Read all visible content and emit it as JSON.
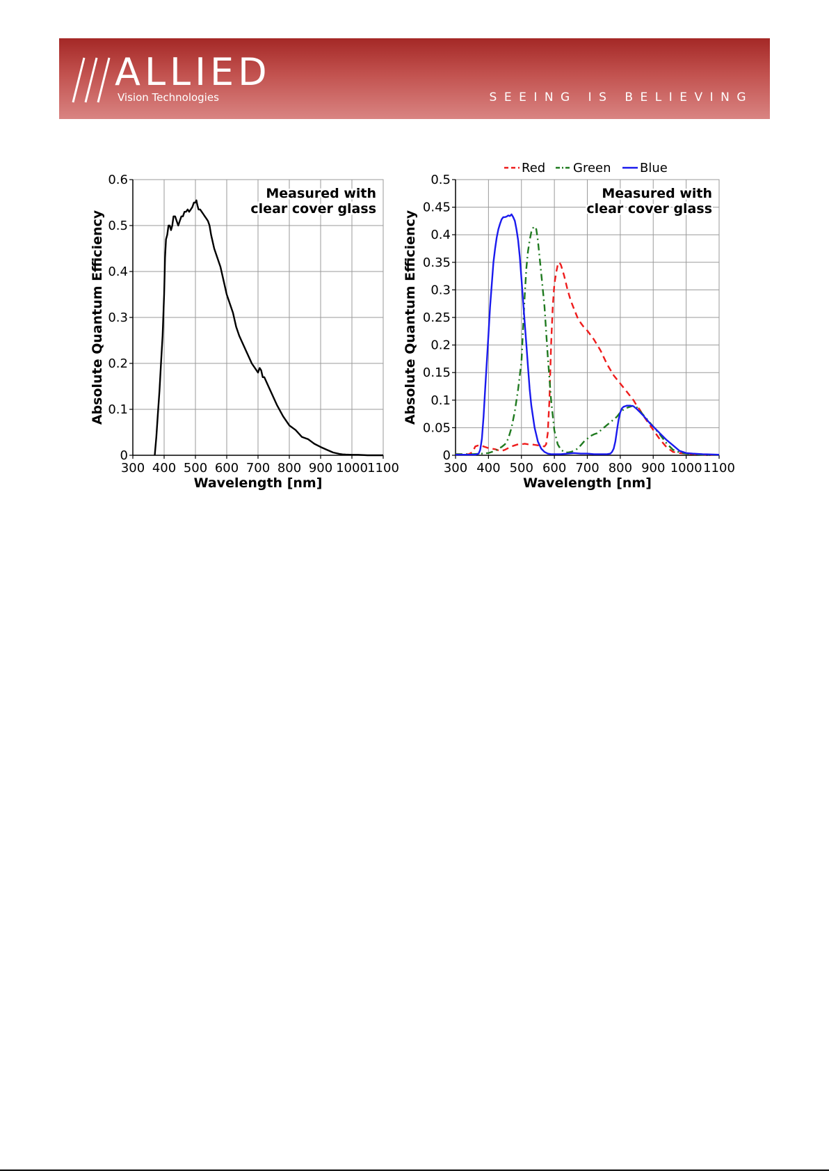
{
  "header": {
    "brand": "ALLIED",
    "subbrand": "Vision Technologies",
    "tagline": "SEEING IS BELIEVING",
    "colors": {
      "banner_top": "#a42826",
      "banner_bottom": "#d98482",
      "text": "#ffffff"
    }
  },
  "chart_data": [
    {
      "type": "line",
      "title": "",
      "ylabel": "Absolute Quantum Efficiency",
      "xlabel": "Wavelength [nm]",
      "annotation": [
        "Measured with",
        "clear cover glass"
      ],
      "xlim": [
        300,
        1100
      ],
      "ylim": [
        0,
        0.6
      ],
      "x_ticks": [
        300,
        400,
        500,
        600,
        700,
        800,
        900,
        1000,
        1100
      ],
      "y_ticks": [
        0,
        0.1,
        0.2,
        0.3,
        0.4,
        0.5,
        0.6
      ],
      "x_tick_labels": [
        "300",
        "400",
        "500",
        "600",
        "700",
        "800",
        "900",
        "1000",
        "1100"
      ],
      "y_tick_labels": [
        "0",
        "0.1",
        "0.2",
        "0.3",
        "0.4",
        "0.5",
        "0.6"
      ],
      "grid": true,
      "legend": null,
      "series": [
        {
          "color": "#000000",
          "dash": "",
          "x": [
            370,
            375,
            380,
            385,
            390,
            395,
            400,
            403,
            406,
            410,
            414,
            418,
            422,
            426,
            430,
            435,
            440,
            445,
            450,
            455,
            460,
            465,
            470,
            475,
            480,
            485,
            490,
            495,
            500,
            503,
            506,
            510,
            515,
            520,
            525,
            530,
            535,
            540,
            545,
            550,
            560,
            570,
            580,
            590,
            600,
            610,
            620,
            630,
            640,
            660,
            680,
            700,
            705,
            710,
            715,
            720,
            730,
            740,
            760,
            780,
            800,
            820,
            840,
            860,
            870,
            880,
            900,
            920,
            940,
            960,
            970,
            980,
            1000,
            1020,
            1050,
            1100
          ],
          "y": [
            0.0,
            0.04,
            0.09,
            0.14,
            0.2,
            0.26,
            0.35,
            0.43,
            0.47,
            0.48,
            0.5,
            0.5,
            0.49,
            0.5,
            0.52,
            0.52,
            0.51,
            0.5,
            0.51,
            0.52,
            0.52,
            0.53,
            0.53,
            0.535,
            0.53,
            0.535,
            0.54,
            0.55,
            0.55,
            0.555,
            0.545,
            0.535,
            0.535,
            0.53,
            0.525,
            0.52,
            0.515,
            0.51,
            0.5,
            0.48,
            0.45,
            0.43,
            0.41,
            0.38,
            0.35,
            0.33,
            0.31,
            0.28,
            0.26,
            0.23,
            0.2,
            0.18,
            0.19,
            0.185,
            0.17,
            0.17,
            0.155,
            0.14,
            0.11,
            0.085,
            0.065,
            0.055,
            0.04,
            0.035,
            0.03,
            0.025,
            0.018,
            0.012,
            0.006,
            0.003,
            0.002,
            0.0015,
            0.001,
            0.001,
            0.0,
            0.0
          ]
        }
      ]
    },
    {
      "type": "line",
      "title": "",
      "ylabel": "Absolute Quantum Efficiency",
      "xlabel": "Wavelength [nm]",
      "annotation": [
        "Measured with",
        "clear cover glass"
      ],
      "xlim": [
        300,
        1100
      ],
      "ylim": [
        0,
        0.5
      ],
      "x_ticks": [
        300,
        400,
        500,
        600,
        700,
        800,
        900,
        1000,
        1100
      ],
      "y_ticks": [
        0,
        0.05,
        0.1,
        0.15,
        0.2,
        0.25,
        0.3,
        0.35,
        0.4,
        0.45,
        0.5
      ],
      "x_tick_labels": [
        "300",
        "400",
        "500",
        "600",
        "700",
        "800",
        "900",
        "1000",
        "1100"
      ],
      "y_tick_labels": [
        "0",
        "0.05",
        "0.1",
        "0.15",
        "0.2",
        "0.25",
        "0.3",
        "0.35",
        "0.4",
        "0.45",
        "0.5"
      ],
      "grid": true,
      "legend": "top",
      "series": [
        {
          "name": "Red",
          "color": "#ee1c1c",
          "dash": "9,6",
          "x": [
            300,
            340,
            350,
            355,
            360,
            370,
            380,
            390,
            400,
            410,
            420,
            430,
            440,
            450,
            460,
            470,
            480,
            490,
            500,
            510,
            520,
            530,
            540,
            550,
            560,
            570,
            575,
            580,
            585,
            590,
            595,
            600,
            605,
            610,
            615,
            620,
            625,
            630,
            640,
            650,
            660,
            670,
            680,
            690,
            700,
            720,
            740,
            760,
            780,
            800,
            820,
            840,
            850,
            860,
            870,
            880,
            900,
            920,
            940,
            960,
            980,
            1000,
            1020,
            1050,
            1100
          ],
          "y": [
            0.002,
            0.002,
            0.005,
            0.01,
            0.016,
            0.018,
            0.017,
            0.015,
            0.013,
            0.012,
            0.011,
            0.009,
            0.008,
            0.01,
            0.013,
            0.016,
            0.018,
            0.02,
            0.02,
            0.021,
            0.02,
            0.02,
            0.019,
            0.018,
            0.017,
            0.016,
            0.02,
            0.04,
            0.1,
            0.2,
            0.27,
            0.31,
            0.33,
            0.345,
            0.35,
            0.345,
            0.335,
            0.325,
            0.3,
            0.28,
            0.265,
            0.25,
            0.24,
            0.232,
            0.226,
            0.21,
            0.19,
            0.165,
            0.145,
            0.13,
            0.115,
            0.1,
            0.09,
            0.082,
            0.072,
            0.063,
            0.046,
            0.029,
            0.015,
            0.006,
            0.004,
            0.003,
            0.002,
            0.001,
            0.001
          ]
        },
        {
          "name": "Green",
          "color": "#1f7a1f",
          "dash": "10,5,2,5",
          "x": [
            300,
            350,
            380,
            400,
            410,
            420,
            430,
            440,
            450,
            460,
            470,
            480,
            490,
            500,
            505,
            510,
            515,
            520,
            525,
            530,
            535,
            540,
            545,
            550,
            555,
            560,
            570,
            580,
            590,
            600,
            610,
            620,
            630,
            640,
            650,
            660,
            670,
            680,
            690,
            700,
            710,
            720,
            730,
            740,
            750,
            760,
            770,
            780,
            790,
            800,
            810,
            820,
            830,
            840,
            850,
            860,
            880,
            900,
            920,
            940,
            960,
            980,
            1000,
            1020,
            1050,
            1100
          ],
          "y": [
            0.002,
            0.002,
            0.003,
            0.004,
            0.006,
            0.008,
            0.012,
            0.015,
            0.02,
            0.03,
            0.05,
            0.08,
            0.12,
            0.17,
            0.23,
            0.29,
            0.34,
            0.37,
            0.39,
            0.405,
            0.412,
            0.415,
            0.41,
            0.39,
            0.36,
            0.33,
            0.27,
            0.18,
            0.1,
            0.045,
            0.02,
            0.01,
            0.006,
            0.005,
            0.006,
            0.008,
            0.012,
            0.018,
            0.025,
            0.03,
            0.035,
            0.038,
            0.04,
            0.045,
            0.05,
            0.055,
            0.06,
            0.065,
            0.07,
            0.078,
            0.083,
            0.086,
            0.088,
            0.09,
            0.087,
            0.08,
            0.066,
            0.052,
            0.038,
            0.022,
            0.01,
            0.005,
            0.003,
            0.002,
            0.001,
            0.001
          ]
        },
        {
          "name": "Blue",
          "color": "#1a1aee",
          "dash": "",
          "x": [
            300,
            360,
            370,
            375,
            380,
            385,
            390,
            395,
            400,
            405,
            410,
            415,
            420,
            425,
            430,
            435,
            440,
            445,
            450,
            455,
            460,
            465,
            470,
            475,
            480,
            485,
            490,
            495,
            500,
            505,
            510,
            515,
            520,
            525,
            530,
            540,
            550,
            560,
            570,
            580,
            590,
            600,
            620,
            640,
            660,
            680,
            700,
            720,
            740,
            760,
            770,
            775,
            780,
            785,
            790,
            795,
            800,
            805,
            810,
            815,
            820,
            830,
            840,
            850,
            860,
            870,
            880,
            890,
            900,
            920,
            940,
            960,
            980,
            1000,
            1020,
            1050,
            1100
          ],
          "y": [
            0.001,
            0.001,
            0.003,
            0.01,
            0.03,
            0.07,
            0.12,
            0.17,
            0.22,
            0.27,
            0.31,
            0.35,
            0.375,
            0.395,
            0.41,
            0.42,
            0.428,
            0.432,
            0.432,
            0.433,
            0.435,
            0.434,
            0.437,
            0.432,
            0.425,
            0.41,
            0.39,
            0.36,
            0.32,
            0.28,
            0.24,
            0.2,
            0.16,
            0.12,
            0.09,
            0.05,
            0.025,
            0.012,
            0.006,
            0.003,
            0.002,
            0.002,
            0.002,
            0.003,
            0.004,
            0.003,
            0.003,
            0.002,
            0.002,
            0.002,
            0.003,
            0.006,
            0.012,
            0.025,
            0.045,
            0.065,
            0.078,
            0.085,
            0.088,
            0.089,
            0.09,
            0.09,
            0.089,
            0.084,
            0.078,
            0.072,
            0.065,
            0.058,
            0.052,
            0.04,
            0.028,
            0.018,
            0.008,
            0.004,
            0.003,
            0.002,
            0.001
          ]
        }
      ]
    }
  ]
}
